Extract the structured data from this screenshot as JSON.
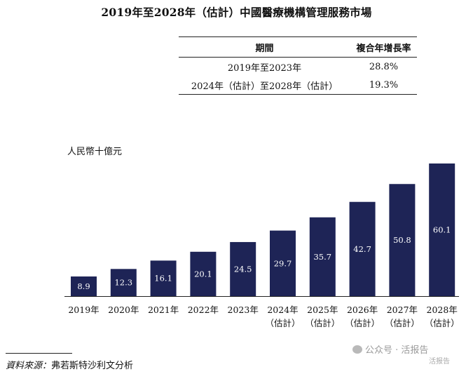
{
  "title": "2019年至2028年（估計）中國醫療機構管理服務市場",
  "cagr_table": {
    "headers": [
      "期間",
      "複合年增長率"
    ],
    "rows": [
      {
        "period": "2019年至2023年",
        "rate": "28.8%"
      },
      {
        "period": "2024年（估計）至2028年（估計）",
        "rate": "19.3%"
      }
    ]
  },
  "unit_label": "人民幣十億元",
  "chart_data": {
    "type": "bar",
    "categories": [
      "2019年",
      "2020年",
      "2021年",
      "2022年",
      "2023年",
      "2024年",
      "2025年",
      "2026年",
      "2027年",
      "2028年"
    ],
    "category_notes": [
      "",
      "",
      "",
      "",
      "",
      "（估計）",
      "（估計）",
      "（估計）",
      "（估計）",
      "（估計）"
    ],
    "values": [
      8.9,
      12.3,
      16.1,
      20.1,
      24.5,
      29.7,
      35.7,
      42.7,
      50.8,
      60.1
    ],
    "value_labels": [
      "8.9",
      "12.3",
      "16.1",
      "20.1",
      "24.5",
      "29.7",
      "35.7",
      "42.7",
      "50.8",
      "60.1"
    ],
    "ylabel": "人民幣十億元",
    "ylim": [
      0,
      60.1
    ],
    "bar_color": "#1e2456",
    "grid": false,
    "legend": "none"
  },
  "source": {
    "label": "資料來源：",
    "text": "弗若斯特沙利文分析"
  },
  "watermark": {
    "text": "公众号 · 活报告",
    "sub": "活报告"
  }
}
